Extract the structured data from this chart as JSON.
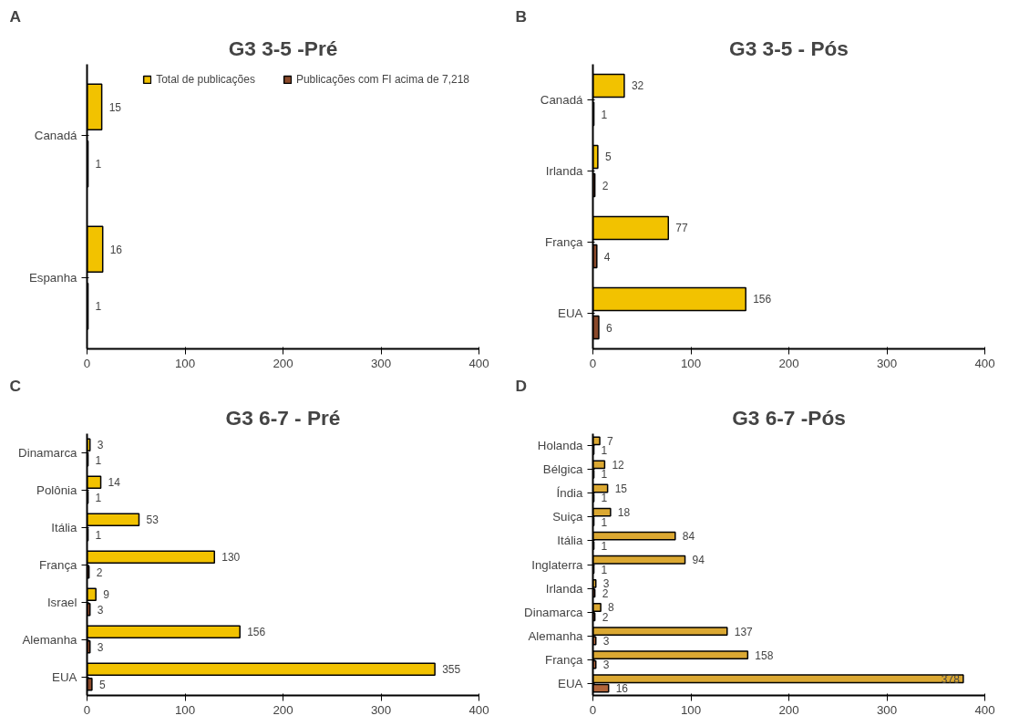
{
  "chart_data": [
    {
      "type": "bar",
      "orientation": "horizontal",
      "title": "G3 3-5 -Pré",
      "annotations": [
        "A"
      ],
      "categories": [
        "Canadá",
        "Espanha"
      ],
      "legend": "top right",
      "data_labels": true,
      "xlim": [
        0,
        400
      ],
      "xticks": [
        0,
        100,
        200,
        300,
        400
      ],
      "grid": false,
      "series": [
        {
          "name": "Total de publicações",
          "color": "#f2c200",
          "values": [
            15,
            16
          ]
        },
        {
          "name": "Publicações com FI acima de 7,218",
          "color": "#8b4a2b",
          "values": [
            1,
            1
          ]
        }
      ]
    },
    {
      "type": "bar",
      "orientation": "horizontal",
      "title": "G3 3-5 - Pós",
      "annotations": [
        "B"
      ],
      "categories": [
        "Canadá",
        "Irlanda",
        "França",
        "EUA"
      ],
      "data_labels": true,
      "xlim": [
        0,
        400
      ],
      "xticks": [
        0,
        100,
        200,
        300,
        400
      ],
      "grid": false,
      "series": [
        {
          "color": "#f2c200",
          "values": [
            32,
            5,
            77,
            156
          ]
        },
        {
          "color": "#8b4a2b",
          "values": [
            1,
            2,
            4,
            6
          ]
        }
      ]
    },
    {
      "type": "bar",
      "orientation": "horizontal",
      "title": "G3 6-7 - Pré",
      "annotations": [
        "C"
      ],
      "categories": [
        "Dinamarca",
        "Polônia",
        "Itália",
        "França",
        "Israel",
        "Alemanha",
        "EUA"
      ],
      "data_labels": true,
      "xlim": [
        0,
        400
      ],
      "xticks": [
        0,
        100,
        200,
        300,
        400
      ],
      "grid": false,
      "series": [
        {
          "color": "#f2c200",
          "values": [
            3,
            14,
            53,
            130,
            9,
            156,
            355
          ]
        },
        {
          "color": "#8b4a2b",
          "values": [
            1,
            1,
            1,
            2,
            3,
            3,
            5
          ]
        }
      ]
    },
    {
      "type": "bar",
      "orientation": "horizontal",
      "title": "G3 6-7 -Pós",
      "annotations": [
        "D"
      ],
      "categories": [
        "Holanda",
        "Bélgica",
        "Índia",
        "Suiça",
        "Itália",
        "Inglaterra",
        "Irlanda",
        "Dinamarca",
        "Alemanha",
        "França",
        "EUA"
      ],
      "data_labels": true,
      "xlim": [
        0,
        400
      ],
      "xticks": [
        0,
        100,
        200,
        300,
        400
      ],
      "grid": false,
      "series": [
        {
          "color": "#dba832",
          "values": [
            7,
            12,
            15,
            18,
            84,
            94,
            3,
            8,
            137,
            158,
            378
          ]
        },
        {
          "color": "#b0643a",
          "values": [
            1,
            1,
            1,
            1,
            1,
            1,
            2,
            2,
            3,
            3,
            16
          ]
        }
      ]
    }
  ]
}
